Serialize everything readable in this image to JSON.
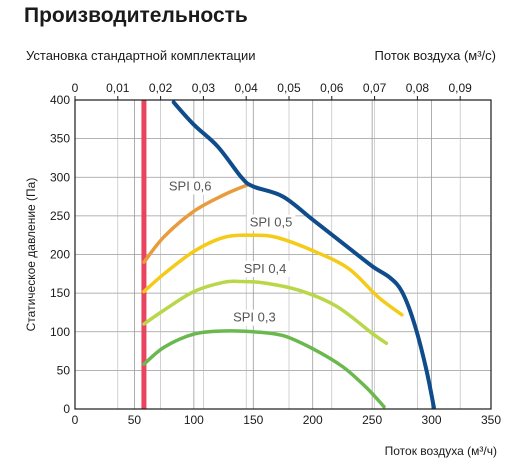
{
  "header": {
    "title": "Производительность",
    "subtitle": "Установка стандартной комплектации",
    "top_axis_label": "Поток воздуха (м³/с)"
  },
  "chart_data": {
    "type": "line",
    "title": "Производительность",
    "subtitle": "Установка стандартной комплектации",
    "xlabel": "Поток воздуха (м³/ч)",
    "ylabel": "Статическое давление (Па)",
    "x2label": "Поток воздуха (м³/с)",
    "xlim": [
      0,
      350
    ],
    "ylim": [
      0,
      400
    ],
    "x2lim": [
      0,
      0.0972
    ],
    "grid": true,
    "xticks": [
      0,
      50,
      100,
      150,
      200,
      250,
      300,
      350
    ],
    "yticks": [
      0,
      50,
      100,
      150,
      200,
      250,
      300,
      350,
      400
    ],
    "x2ticks": [
      0,
      0.01,
      0.02,
      0.03,
      0.04,
      0.05,
      0.06,
      0.07,
      0.08,
      0.09
    ],
    "x2ticklabels": [
      "0",
      "0,01",
      "0,02",
      "0,03",
      "0,04",
      "0,05",
      "0,06",
      "0,07",
      "0,08",
      "0,09"
    ],
    "min_flow_line": {
      "x": 58,
      "color": "#e8435f"
    },
    "series": [
      {
        "label": "SPI 0,3",
        "color": "#6ab84e",
        "x": [
          58,
          75,
          100,
          125,
          150,
          175,
          200,
          225,
          245,
          260
        ],
        "y": [
          58,
          80,
          97,
          101,
          100,
          95,
          78,
          55,
          28,
          3
        ],
        "label_at": [
          133,
          113
        ]
      },
      {
        "label": "SPI 0,4",
        "color": "#b8d749",
        "x": [
          58,
          75,
          100,
          125,
          140,
          160,
          190,
          220,
          250,
          262
        ],
        "y": [
          110,
          128,
          152,
          164,
          165,
          163,
          153,
          133,
          98,
          85
        ],
        "label_at": [
          142,
          176
        ]
      },
      {
        "label": "SPI 0,5",
        "color": "#f5cb19",
        "x": [
          58,
          75,
          100,
          125,
          150,
          170,
          200,
          230,
          255,
          275
        ],
        "y": [
          152,
          175,
          204,
          222,
          225,
          222,
          205,
          182,
          145,
          122
        ],
        "label_at": [
          147,
          236
        ]
      },
      {
        "label": "SPI 0,6",
        "color": "#e89c3c",
        "x": [
          58,
          75,
          100,
          125,
          145
        ],
        "y": [
          190,
          223,
          256,
          277,
          290
        ],
        "label_at": [
          79,
          283
        ]
      },
      {
        "label": "",
        "color": "#0f4c8c",
        "x": [
          83,
          100,
          120,
          140,
          150,
          175,
          200,
          225,
          250,
          265,
          275,
          285,
          295,
          302
        ],
        "y": [
          397,
          368,
          340,
          300,
          288,
          275,
          245,
          215,
          185,
          170,
          152,
          113,
          55,
          2
        ]
      }
    ]
  }
}
